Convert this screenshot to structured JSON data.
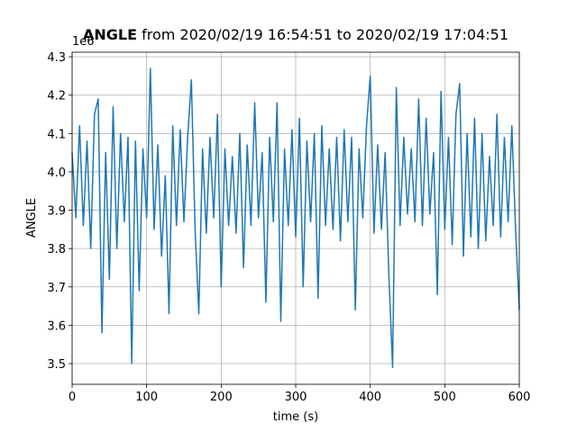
{
  "chart_data": {
    "type": "line",
    "title_bold": "ANGLE",
    "title": "from 2020/02/19 16:54:51 to 2020/02/19 17:04:51",
    "y_offset_label": "1e6",
    "xlabel": "time (s)",
    "ylabel": "ANGLE",
    "x": [
      0,
      5,
      10,
      15,
      20,
      25,
      30,
      35,
      40,
      45,
      50,
      55,
      60,
      65,
      70,
      75,
      80,
      85,
      90,
      95,
      100,
      105,
      110,
      115,
      120,
      125,
      130,
      135,
      140,
      145,
      150,
      155,
      160,
      165,
      170,
      175,
      180,
      185,
      190,
      195,
      200,
      205,
      210,
      215,
      220,
      225,
      230,
      235,
      240,
      245,
      250,
      255,
      260,
      265,
      270,
      275,
      280,
      285,
      290,
      295,
      300,
      305,
      310,
      315,
      320,
      325,
      330,
      335,
      340,
      345,
      350,
      355,
      360,
      365,
      370,
      375,
      380,
      385,
      390,
      395,
      400,
      405,
      410,
      415,
      420,
      425,
      430,
      435,
      440,
      445,
      450,
      455,
      460,
      465,
      470,
      475,
      480,
      485,
      490,
      495,
      500,
      505,
      510,
      515,
      520,
      525,
      530,
      535,
      540,
      545,
      550,
      555,
      560,
      565,
      570,
      575,
      580,
      585,
      590,
      595,
      600
    ],
    "series": [
      {
        "name": "ANGLE",
        "color": "#1f77b4",
        "values": [
          4.05,
          3.88,
          4.12,
          3.86,
          4.08,
          3.8,
          4.15,
          4.19,
          3.58,
          4.05,
          3.72,
          4.17,
          3.8,
          4.1,
          3.87,
          4.09,
          3.5,
          4.08,
          3.69,
          4.06,
          3.88,
          4.27,
          3.85,
          4.07,
          3.78,
          3.99,
          3.63,
          4.12,
          3.86,
          4.11,
          3.87,
          4.09,
          4.24,
          3.85,
          3.63,
          4.06,
          3.84,
          4.09,
          3.88,
          4.15,
          3.7,
          4.06,
          3.86,
          4.04,
          3.84,
          4.1,
          3.75,
          4.07,
          3.86,
          4.18,
          3.88,
          4.05,
          3.66,
          4.09,
          3.87,
          4.18,
          3.61,
          4.06,
          3.86,
          4.11,
          3.83,
          4.14,
          3.7,
          4.08,
          3.87,
          4.1,
          3.67,
          4.12,
          3.86,
          4.06,
          3.85,
          4.09,
          3.82,
          4.11,
          3.87,
          4.09,
          3.64,
          4.06,
          3.88,
          4.12,
          4.25,
          3.84,
          4.07,
          3.85,
          4.05,
          3.73,
          3.49,
          4.22,
          3.86,
          4.09,
          3.89,
          4.06,
          3.87,
          4.19,
          3.86,
          4.14,
          3.89,
          4.05,
          3.68,
          4.21,
          3.85,
          4.09,
          3.81,
          4.15,
          4.23,
          3.78,
          4.1,
          3.83,
          4.14,
          3.8,
          4.1,
          3.82,
          4.04,
          3.86,
          4.15,
          3.83,
          4.09,
          3.87,
          4.12,
          3.85,
          3.64
        ]
      }
    ],
    "xlim": [
      0,
      600
    ],
    "ylim": [
      3.446,
      4.312
    ],
    "xticks": [
      0,
      100,
      200,
      300,
      400,
      500,
      600
    ],
    "yticks": [
      3.5,
      3.6,
      3.7,
      3.8,
      3.9,
      {
        "value": 4.0,
        "label": "4.0"
      },
      4.1,
      4.2,
      4.3
    ],
    "grid": true
  }
}
